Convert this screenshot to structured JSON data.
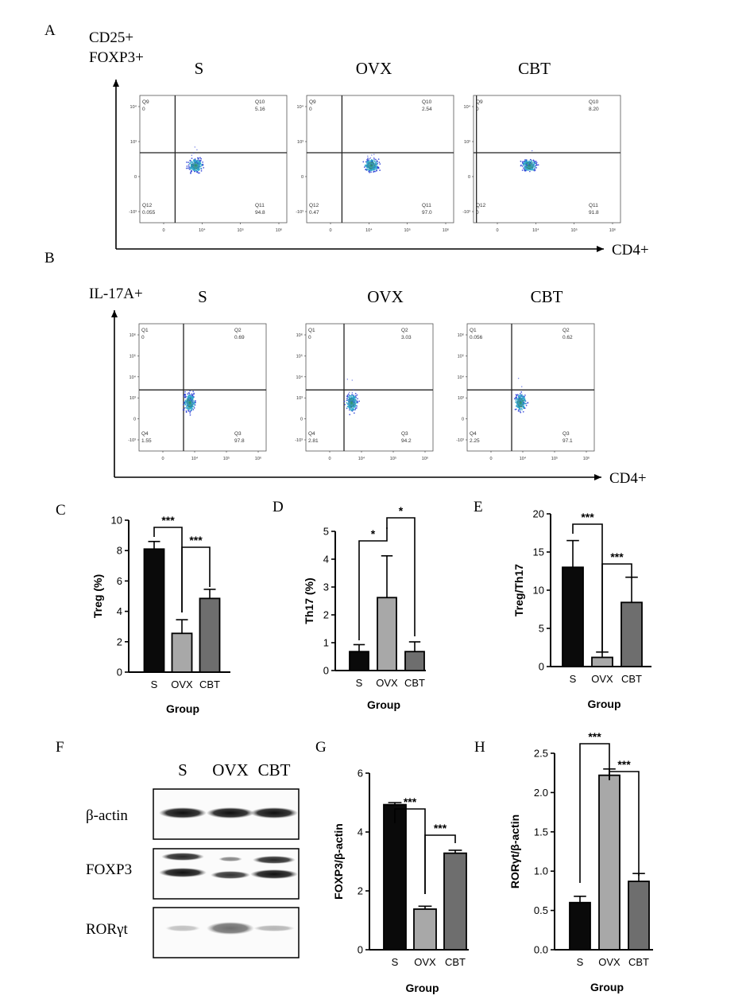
{
  "panel_letters": [
    "A",
    "B",
    "C",
    "D",
    "E",
    "F",
    "G",
    "H"
  ],
  "flow": {
    "A": {
      "y_label_lines": [
        "CD25+",
        "FOXP3+"
      ],
      "x_label": "CD4+",
      "plots": [
        {
          "name": "S",
          "q_ul": "Q9",
          "v_ul": "0",
          "q_ur": "Q10",
          "v_ur": "5.16",
          "q_ll": "Q12",
          "v_ll": "0.055",
          "q_lr": "Q11",
          "v_lr": "94.8"
        },
        {
          "name": "OVX",
          "q_ul": "Q9",
          "v_ul": "0",
          "q_ur": "Q10",
          "v_ur": "2.54",
          "q_ll": "Q12",
          "v_ll": "0.47",
          "q_lr": "Q11",
          "v_lr": "97.0"
        },
        {
          "name": "CBT",
          "q_ul": "Q9",
          "v_ul": "0",
          "q_ur": "Q10",
          "v_ur": "8.20",
          "q_ll": "Q12",
          "v_ll": "0",
          "q_lr": "Q11",
          "v_lr": "91.8"
        }
      ],
      "y_ticks": [
        "10⁴",
        "10³",
        "0",
        "-10³"
      ],
      "x_ticks": [
        "0",
        "10⁴",
        "10⁵",
        "10⁶"
      ]
    },
    "B": {
      "y_label_lines": [
        "IL-17A+"
      ],
      "x_label": "CD4+",
      "plots": [
        {
          "name": "S",
          "q_ul": "Q1",
          "v_ul": "0",
          "q_ur": "Q2",
          "v_ur": "0.69",
          "q_ll": "Q4",
          "v_ll": "1.55",
          "q_lr": "Q3",
          "v_lr": "97.8"
        },
        {
          "name": "OVX",
          "q_ul": "Q1",
          "v_ul": "0",
          "q_ur": "Q2",
          "v_ur": "3.03",
          "q_ll": "Q4",
          "v_ll": "2.81",
          "q_lr": "Q3",
          "v_lr": "94.2"
        },
        {
          "name": "CBT",
          "q_ul": "Q1",
          "v_ul": "0.056",
          "q_ur": "Q2",
          "v_ur": "0.62",
          "q_ll": "Q4",
          "v_ll": "2.25",
          "q_lr": "Q3",
          "v_lr": "97.1"
        }
      ],
      "y_ticks": [
        "10⁶",
        "10⁵",
        "10⁴",
        "10³",
        "0",
        "-10³"
      ],
      "x_ticks": [
        "0",
        "10⁴",
        "10⁵",
        "10⁶"
      ]
    }
  },
  "blot": {
    "lane_labels": [
      "S",
      "OVX",
      "CBT"
    ],
    "row_labels": [
      "β-actin",
      "FOXP3",
      "RORγt"
    ]
  },
  "colors": {
    "S": "#0a0a0a",
    "OVX": "#a8a8a8",
    "CBT": "#6e6e6e",
    "dot_core": "#2e8b57",
    "dot_mid": "#38a0d8",
    "dot_edge": "#2233cc"
  },
  "chart_data": [
    {
      "panel": "C",
      "type": "bar",
      "categories": [
        "S",
        "OVX",
        "CBT"
      ],
      "values": [
        8.1,
        2.55,
        4.85
      ],
      "errors": [
        0.5,
        0.9,
        0.6
      ],
      "xlabel": "Group",
      "ylabel": "Treg (%)",
      "ylim": [
        0,
        10
      ],
      "yticks": [
        0,
        2,
        4,
        6,
        8,
        10
      ],
      "significance": [
        {
          "from": "S",
          "to": "OVX",
          "label": "***"
        },
        {
          "from": "OVX",
          "to": "CBT",
          "label": "***"
        }
      ]
    },
    {
      "panel": "D",
      "type": "bar",
      "categories": [
        "S",
        "OVX",
        "CBT"
      ],
      "values": [
        0.68,
        2.62,
        0.68
      ],
      "errors": [
        0.25,
        1.5,
        0.35
      ],
      "xlabel": "Group",
      "ylabel": "Th17 (%)",
      "ylim": [
        0,
        5
      ],
      "yticks": [
        0,
        1,
        2,
        3,
        4,
        5
      ],
      "significance": [
        {
          "from": "S",
          "to": "OVX",
          "label": "*"
        },
        {
          "from": "OVX",
          "to": "CBT",
          "label": "*"
        }
      ]
    },
    {
      "panel": "E",
      "type": "bar",
      "categories": [
        "S",
        "OVX",
        "CBT"
      ],
      "values": [
        13.0,
        1.2,
        8.4
      ],
      "errors": [
        3.5,
        0.7,
        3.3
      ],
      "xlabel": "Group",
      "ylabel": "Treg/Th17",
      "ylim": [
        0,
        20
      ],
      "yticks": [
        0,
        5,
        10,
        15,
        20
      ],
      "significance": [
        {
          "from": "S",
          "to": "OVX",
          "label": "***"
        },
        {
          "from": "OVX",
          "to": "CBT",
          "label": "***"
        }
      ]
    },
    {
      "panel": "G",
      "type": "bar",
      "categories": [
        "S",
        "OVX",
        "CBT"
      ],
      "values": [
        4.93,
        1.38,
        3.28
      ],
      "errors": [
        0.07,
        0.1,
        0.1
      ],
      "xlabel": "Group",
      "ylabel": "FOXP3/β-actin",
      "ylim": [
        0,
        6
      ],
      "yticks": [
        0,
        2,
        4,
        6
      ],
      "significance": [
        {
          "from": "S",
          "to": "OVX",
          "label": "***"
        },
        {
          "from": "OVX",
          "to": "CBT",
          "label": "***"
        }
      ]
    },
    {
      "panel": "H",
      "type": "bar",
      "categories": [
        "S",
        "OVX",
        "CBT"
      ],
      "values": [
        0.6,
        2.22,
        0.87
      ],
      "errors": [
        0.08,
        0.08,
        0.1
      ],
      "xlabel": "Group",
      "ylabel": "RORγt/β-actin",
      "ylim": [
        0,
        2.5
      ],
      "yticks": [
        "0.0",
        "0.5",
        "1.0",
        "1.5",
        "2.0",
        "2.5"
      ],
      "significance": [
        {
          "from": "S",
          "to": "OVX",
          "label": "***"
        },
        {
          "from": "OVX",
          "to": "CBT",
          "label": "***"
        }
      ]
    }
  ]
}
